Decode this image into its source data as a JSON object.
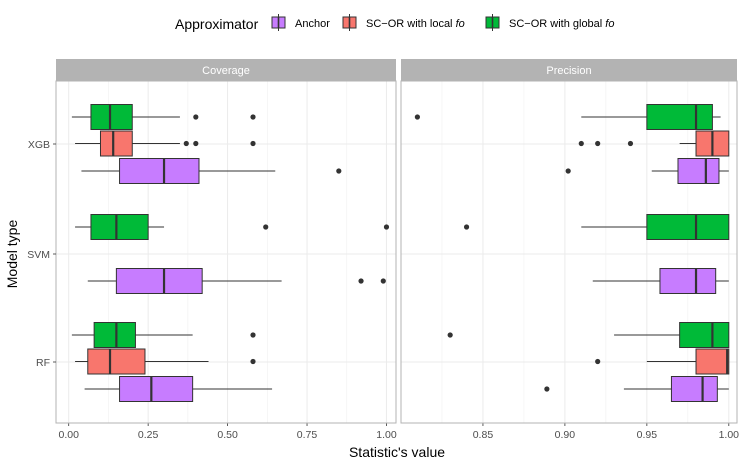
{
  "chart_data": {
    "type": "boxplot",
    "orientation": "horizontal",
    "xlabel": "Statistic's value",
    "ylabel": "Model type",
    "models": [
      "XGB",
      "SVM",
      "RF"
    ],
    "legend": {
      "title": "Approximator",
      "position": "top",
      "entries": [
        {
          "key": "anchor",
          "prefix": "Anchor",
          "italic": "",
          "color": "#C77CFF"
        },
        {
          "key": "local",
          "prefix": "SC−OR with local ",
          "italic": "fo",
          "color": "#F8766D"
        },
        {
          "key": "global",
          "prefix": "SC−OR with global ",
          "italic": "fo",
          "color": "#00BA38"
        }
      ]
    },
    "panels": [
      {
        "title": "Coverage",
        "xlim": [
          -0.04,
          1.03
        ],
        "ticks": [
          0,
          0.25,
          0.5,
          0.75,
          1
        ],
        "tick_labels": [
          "0.00",
          "0.25",
          "0.50",
          "0.75",
          "1.00"
        ],
        "boxes": [
          {
            "model": "XGB",
            "approximator": "global",
            "whisker_low": 0.01,
            "q1": 0.07,
            "median": 0.13,
            "q3": 0.2,
            "whisker_high": 0.35,
            "outliers": [
              0.4,
              0.58
            ]
          },
          {
            "model": "XGB",
            "approximator": "local",
            "whisker_low": 0.02,
            "q1": 0.1,
            "median": 0.14,
            "q3": 0.2,
            "whisker_high": 0.35,
            "outliers": [
              0.37,
              0.4,
              0.58
            ]
          },
          {
            "model": "XGB",
            "approximator": "anchor",
            "whisker_low": 0.04,
            "q1": 0.16,
            "median": 0.3,
            "q3": 0.41,
            "whisker_high": 0.65,
            "outliers": [
              0.85
            ]
          },
          {
            "model": "SVM",
            "approximator": "global",
            "whisker_low": 0.02,
            "q1": 0.07,
            "median": 0.15,
            "q3": 0.25,
            "whisker_high": 0.3,
            "outliers": [
              0.62,
              1.0
            ]
          },
          {
            "model": "SVM",
            "approximator": "anchor",
            "whisker_low": 0.06,
            "q1": 0.15,
            "median": 0.3,
            "q3": 0.42,
            "whisker_high": 0.67,
            "outliers": [
              0.92,
              0.99
            ]
          },
          {
            "model": "RF",
            "approximator": "global",
            "whisker_low": 0.01,
            "q1": 0.08,
            "median": 0.15,
            "q3": 0.21,
            "whisker_high": 0.39,
            "outliers": [
              0.58
            ]
          },
          {
            "model": "RF",
            "approximator": "local",
            "whisker_low": 0.02,
            "q1": 0.06,
            "median": 0.13,
            "q3": 0.24,
            "whisker_high": 0.44,
            "outliers": [
              0.58
            ]
          },
          {
            "model": "RF",
            "approximator": "anchor",
            "whisker_low": 0.05,
            "q1": 0.16,
            "median": 0.26,
            "q3": 0.39,
            "whisker_high": 0.64,
            "outliers": []
          }
        ]
      },
      {
        "title": "Precision",
        "xlim": [
          0.8,
          1.005
        ],
        "ticks": [
          0.85,
          0.9,
          0.95,
          1
        ],
        "tick_labels": [
          "0.85",
          "0.90",
          "0.95",
          "1.00"
        ],
        "boxes": [
          {
            "model": "XGB",
            "approximator": "global",
            "whisker_low": 0.91,
            "q1": 0.95,
            "median": 0.98,
            "q3": 0.99,
            "whisker_high": 0.995,
            "outliers": [
              0.81
            ]
          },
          {
            "model": "XGB",
            "approximator": "local",
            "whisker_low": 0.97,
            "q1": 0.98,
            "median": 0.99,
            "q3": 1.0,
            "whisker_high": 1.0,
            "outliers": [
              0.91,
              0.92,
              0.94
            ]
          },
          {
            "model": "XGB",
            "approximator": "anchor",
            "whisker_low": 0.953,
            "q1": 0.969,
            "median": 0.986,
            "q3": 0.994,
            "whisker_high": 1.0,
            "outliers": [
              0.902
            ]
          },
          {
            "model": "SVM",
            "approximator": "global",
            "whisker_low": 0.91,
            "q1": 0.95,
            "median": 0.98,
            "q3": 1.0,
            "whisker_high": 1.0,
            "outliers": [
              0.84
            ]
          },
          {
            "model": "SVM",
            "approximator": "anchor",
            "whisker_low": 0.917,
            "q1": 0.958,
            "median": 0.98,
            "q3": 0.992,
            "whisker_high": 1.0,
            "outliers": []
          },
          {
            "model": "RF",
            "approximator": "global",
            "whisker_low": 0.93,
            "q1": 0.97,
            "median": 0.99,
            "q3": 1.0,
            "whisker_high": 1.0,
            "outliers": [
              0.83
            ]
          },
          {
            "model": "RF",
            "approximator": "local",
            "whisker_low": 0.95,
            "q1": 0.98,
            "median": 0.999,
            "q3": 1.0,
            "whisker_high": 1.0,
            "outliers": [
              0.92
            ]
          },
          {
            "model": "RF",
            "approximator": "anchor",
            "whisker_low": 0.936,
            "q1": 0.965,
            "median": 0.984,
            "q3": 0.993,
            "whisker_high": 1.0,
            "outliers": [
              0.889
            ]
          }
        ]
      }
    ]
  }
}
